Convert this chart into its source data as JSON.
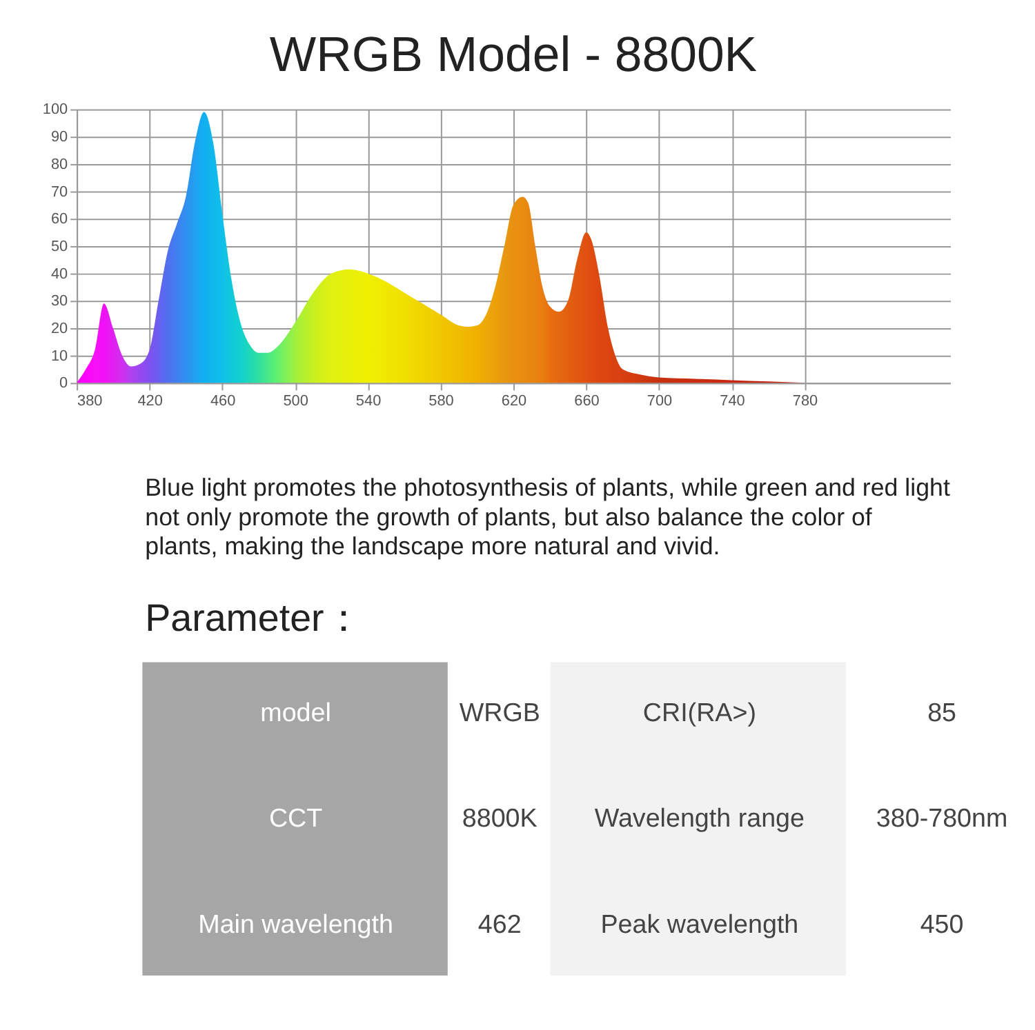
{
  "chart_data": [
    {
      "type": "area",
      "title": "WRGB Model - 8800K",
      "x": [
        380,
        385,
        390,
        395,
        400,
        405,
        410,
        415,
        420,
        425,
        430,
        435,
        440,
        445,
        450,
        455,
        460,
        465,
        470,
        475,
        480,
        485,
        490,
        495,
        500,
        510,
        520,
        530,
        540,
        550,
        560,
        570,
        580,
        590,
        595,
        600,
        605,
        610,
        615,
        620,
        625,
        628,
        632,
        636,
        640,
        645,
        650,
        655,
        660,
        663,
        667,
        672,
        676,
        680,
        690,
        700,
        720,
        740,
        760,
        780
      ],
      "series": [
        {
          "values": [
            0,
            5,
            12,
            29,
            20,
            10,
            6,
            7,
            12,
            30,
            48,
            58,
            68,
            88,
            99,
            88,
            62,
            38,
            22,
            14,
            11,
            11,
            13,
            17,
            22,
            33,
            40,
            41.5,
            40,
            37,
            33,
            29,
            25,
            21,
            20.5,
            21,
            25,
            35,
            50,
            65,
            68,
            66,
            50,
            35,
            28,
            26,
            30,
            45,
            55,
            52,
            40,
            20,
            10,
            5,
            3,
            2,
            1.5,
            1,
            0.5,
            0
          ],
          "colors": [
            "#ff00ff",
            "#ff00ff",
            "#f810f8",
            "#f010f8",
            "#e020f0",
            "#d030f0",
            "#b040f0",
            "#9848f0",
            "#8050f0",
            "#6860f0",
            "#5070f0",
            "#4080f0",
            "#3090f0",
            "#20a0f0",
            "#10b0f0",
            "#10b8ec",
            "#10c0e8",
            "#10c8dc",
            "#10d0d0",
            "#20d8b8",
            "#30e0a0",
            "#48e888",
            "#60f070",
            "#80f058",
            "#a0f040",
            "#c8f020",
            "#e0f010",
            "#e8f008",
            "#f0f000",
            "#f0e800",
            "#f0e000",
            "#f0d400",
            "#f0c800",
            "#f0bc00",
            "#f0b600",
            "#f0b000",
            "#eca808",
            "#eca008",
            "#e89810",
            "#e89010",
            "#e88c10",
            "#e88810",
            "#e88410",
            "#e87c10",
            "#e87010",
            "#e46810",
            "#e46010",
            "#e05810",
            "#e05010",
            "#e04c10",
            "#dc4810",
            "#dc4410",
            "#d84210",
            "#d84010",
            "#d03810",
            "#c83010",
            "#c82c10",
            "#c42810",
            "#c02410",
            "#c02010"
          ]
        }
      ],
      "xlim": [
        380,
        860
      ],
      "xticks": [
        380,
        420,
        460,
        500,
        540,
        580,
        620,
        660,
        700,
        740,
        780
      ],
      "ylim": [
        0,
        100
      ],
      "yticks": [
        0,
        10,
        20,
        30,
        40,
        50,
        60,
        70,
        80,
        90,
        100
      ],
      "grid": true
    },
    {
      "type": "other",
      "annotations": [
        "Blue light promotes the photosynthesis of plants, while green and red light",
        "not only promote the growth of plants, but also balance the color of",
        "plants, making the landscape more natural and vivid.",
        "Parameter：",
        "model",
        "WRGB",
        "CRI(RA>)",
        "85",
        "CCT",
        "8800K",
        "Wavelength range",
        "380-780nm",
        "Main wavelength",
        "462",
        "Peak wavelength",
        "450"
      ]
    }
  ]
}
